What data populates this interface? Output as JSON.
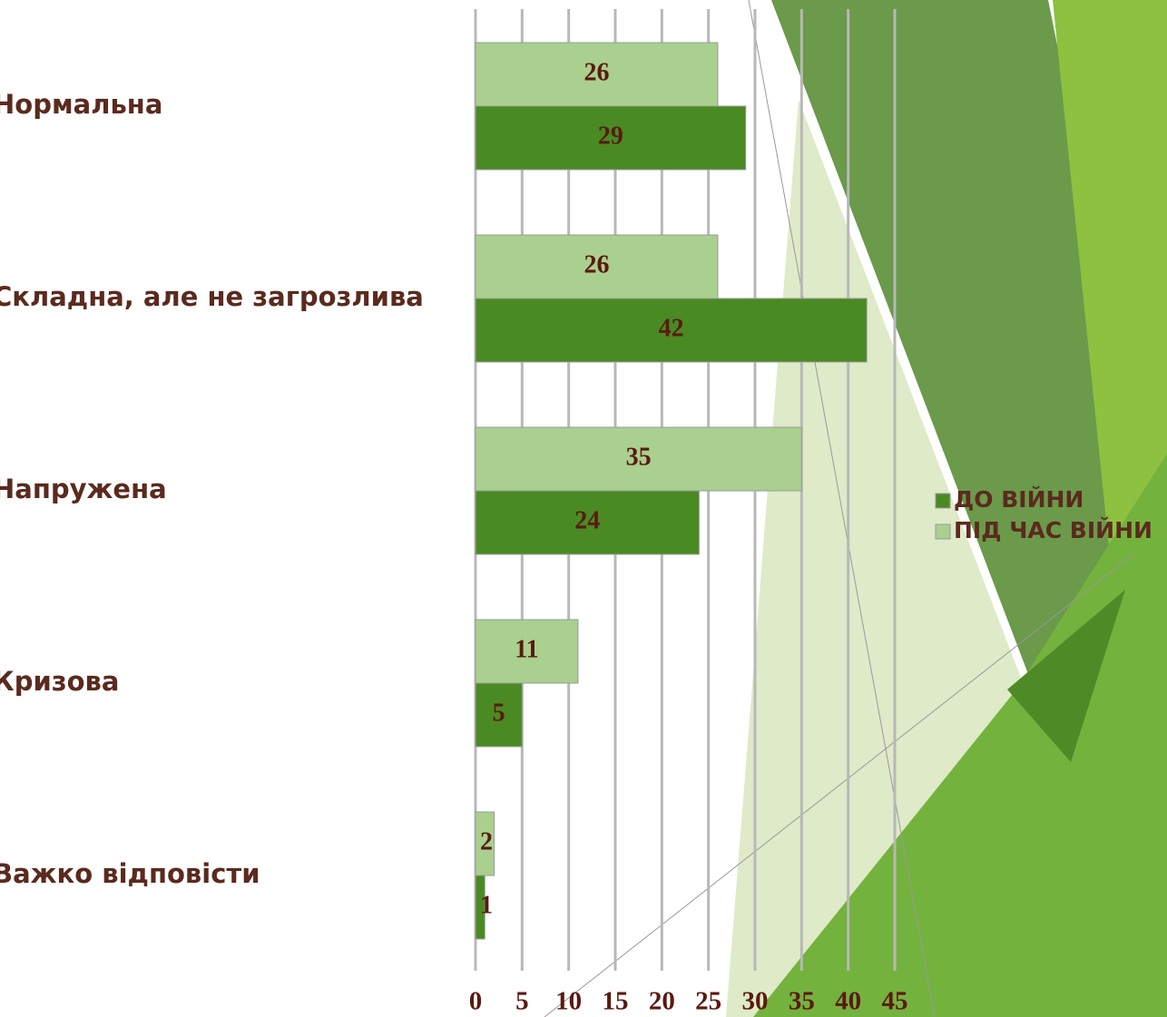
{
  "chart_data": {
    "type": "bar",
    "orientation": "horizontal",
    "categories": [
      "Нормальна",
      "Складна, але не загрозлива",
      "Напружена",
      "Кризова",
      "Важко відповісти"
    ],
    "series": [
      {
        "name": "ДО ВІЙНИ",
        "color": "#4a8a22",
        "values": [
          29,
          42,
          24,
          5,
          1
        ]
      },
      {
        "name": "ПІД ЧАС ВІЙНИ",
        "color": "#a9d08e",
        "values": [
          26,
          26,
          35,
          11,
          2
        ]
      }
    ],
    "xlim": [
      0,
      45
    ],
    "xticks": [
      0,
      5,
      10,
      15,
      20,
      25,
      30,
      35,
      40,
      45
    ],
    "grid": true,
    "legend": "right"
  }
}
